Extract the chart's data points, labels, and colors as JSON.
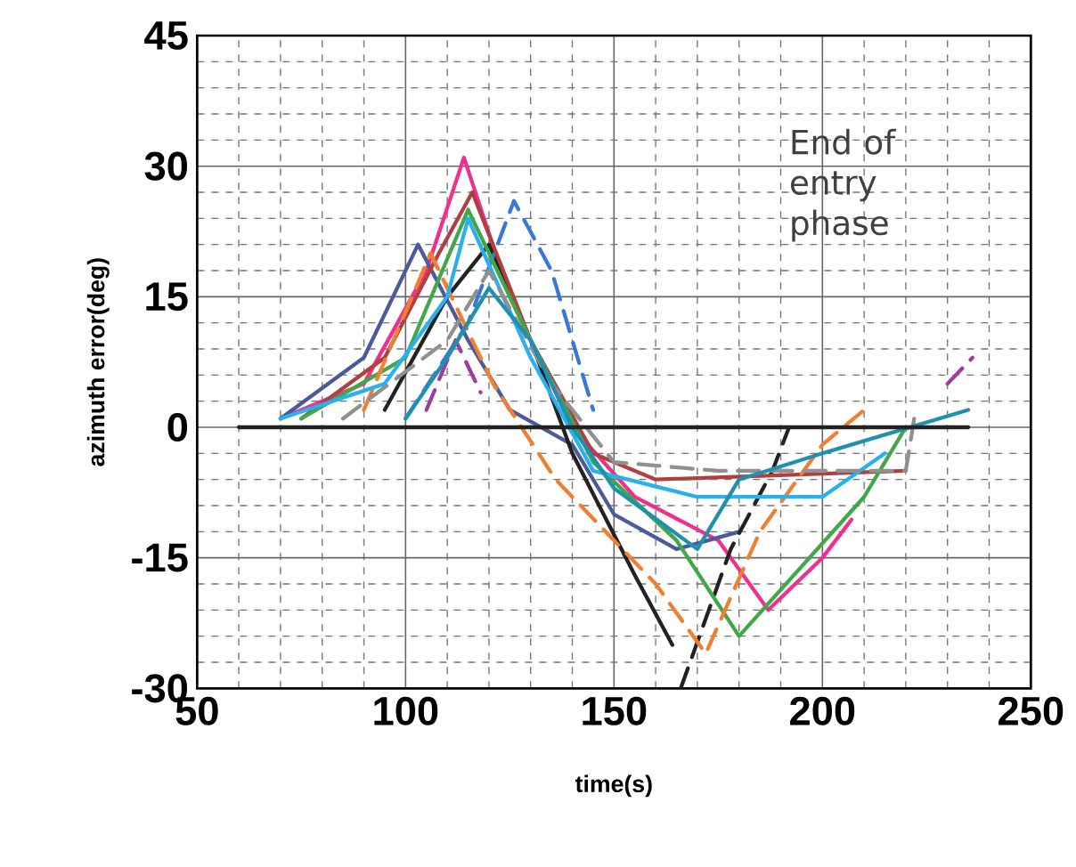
{
  "chart_data": {
    "type": "line",
    "xlabel": "time(s)",
    "ylabel": "azimuth error(deg)",
    "annotations": [
      "End of entry phase"
    ],
    "xlim": [
      50,
      250
    ],
    "ylim": [
      -30,
      45
    ],
    "xticks": [
      50,
      100,
      150,
      200,
      250
    ],
    "yticks": [
      -30,
      -15,
      0,
      15,
      30,
      45
    ],
    "grid": true,
    "line_style": "solid",
    "marker": "none",
    "series": [
      {
        "color": "#f0308c",
        "x": [
          70,
          90,
          105,
          114,
          125,
          140,
          155,
          175,
          187,
          200,
          207
        ],
        "values": [
          1,
          5,
          18,
          31,
          15,
          0,
          -8,
          -13,
          -21,
          -15,
          -10.6
        ]
      },
      {
        "color": "#4a5a9a",
        "x": [
          70,
          90,
          103,
          115,
          125,
          140,
          150,
          165,
          180
        ],
        "values": [
          1,
          8,
          21,
          10,
          2,
          -2,
          -10,
          -14,
          -12
        ]
      },
      {
        "color": "#222222",
        "x": [
          95,
          110,
          120,
          130,
          140,
          155,
          164
        ],
        "values": [
          2,
          15,
          21,
          10,
          -3,
          -17,
          -25
        ]
      },
      {
        "color": "#222222",
        "line_style": "dashed",
        "x": [
          166,
          178,
          188,
          192
        ],
        "values": [
          -30,
          -14,
          -5,
          0
        ]
      },
      {
        "color": "#3a78d8",
        "line_style": "dashed",
        "x": [
          100,
          115,
          126,
          135,
          145
        ],
        "values": [
          1,
          12,
          26,
          18,
          2
        ]
      },
      {
        "color": "#b04040",
        "x": [
          75,
          95,
          108,
          116,
          130,
          145,
          160,
          220
        ],
        "values": [
          1,
          8,
          20,
          27,
          10,
          -3,
          -6,
          -5
        ]
      },
      {
        "color": "#40a848",
        "x": [
          75,
          100,
          115,
          130,
          145,
          165,
          180,
          195,
          210,
          220
        ],
        "values": [
          1,
          8,
          25,
          10,
          -4,
          -13,
          -24,
          -16,
          -8,
          0
        ]
      },
      {
        "color": "#f08030",
        "line_style": "dashed",
        "x": [
          90,
          106,
          121,
          136,
          160,
          172,
          185,
          200,
          210
        ],
        "values": [
          2,
          20,
          5,
          -6,
          -18,
          -26,
          -12,
          -2,
          2
        ]
      },
      {
        "color": "#28b0f0",
        "x": [
          70,
          95,
          110,
          115,
          130,
          145,
          170,
          200,
          215
        ],
        "values": [
          1,
          5,
          15,
          24,
          8,
          -5,
          -8,
          -8,
          -3
        ]
      },
      {
        "color": "#909090",
        "line_style": "dashed",
        "x": [
          85,
          110,
          120,
          135,
          150,
          175,
          220,
          222
        ],
        "values": [
          1,
          10,
          18,
          5,
          -4,
          -5,
          -5,
          1
        ]
      },
      {
        "color": "#a03ca0",
        "line_style": "dashed",
        "x": [
          105,
          112,
          118,
          125,
          230,
          236
        ],
        "values": [
          2,
          10,
          4,
          null,
          5,
          8
        ]
      },
      {
        "color": "#2090b0",
        "x": [
          100,
          110,
          120,
          130,
          140,
          150,
          170,
          180,
          200,
          235
        ],
        "values": [
          1,
          8,
          16,
          10,
          0,
          -7,
          -14,
          -6,
          -3,
          2
        ]
      },
      {
        "color": "#222222",
        "x": [
          60,
          235
        ],
        "values": [
          0,
          0
        ]
      }
    ]
  }
}
